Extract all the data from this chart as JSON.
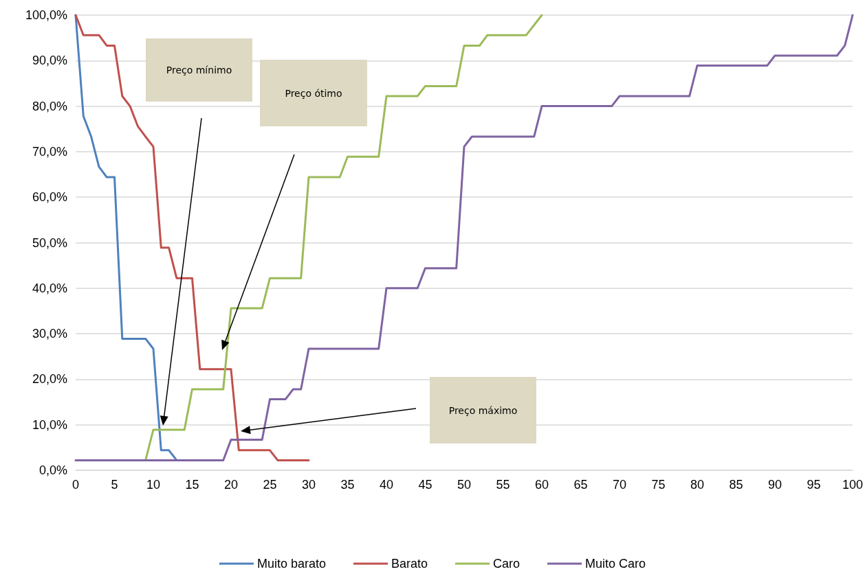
{
  "chart_data": {
    "type": "line",
    "xlim": [
      0,
      100
    ],
    "xticks": [
      0,
      5,
      10,
      15,
      20,
      25,
      30,
      35,
      40,
      45,
      50,
      55,
      60,
      65,
      70,
      75,
      80,
      85,
      90,
      95,
      100
    ],
    "ylim": [
      0,
      100
    ],
    "yticks": [
      {
        "value": 0,
        "label": "0,0%"
      },
      {
        "value": 10,
        "label": "10,0%"
      },
      {
        "value": 20,
        "label": "20,0%"
      },
      {
        "value": 30,
        "label": "30,0%"
      },
      {
        "value": 40,
        "label": "40,0%"
      },
      {
        "value": 50,
        "label": "50,0%"
      },
      {
        "value": 60,
        "label": "60,0%"
      },
      {
        "value": 70,
        "label": "70,0%"
      },
      {
        "value": 80,
        "label": "80,0%"
      },
      {
        "value": 90,
        "label": "90,0%"
      },
      {
        "value": 100,
        "label": "100,0%"
      }
    ],
    "grid": "y",
    "legend": "bottom",
    "marker": "none",
    "line_style": "solid",
    "series": [
      {
        "name": "Muito barato",
        "color": "#4f81bd",
        "x": [
          0,
          1,
          2,
          3,
          4,
          5,
          6,
          9,
          10,
          11,
          12,
          13
        ],
        "values": [
          100,
          77.8,
          73.3,
          66.7,
          64.4,
          64.4,
          28.9,
          28.9,
          26.7,
          4.4,
          4.4,
          2.2
        ]
      },
      {
        "name": "Barato",
        "color": "#c0504d",
        "x": [
          0,
          1,
          3,
          4,
          5,
          6,
          7,
          8,
          9,
          10,
          11,
          12,
          13,
          15,
          16,
          20,
          21,
          25,
          26,
          30
        ],
        "values": [
          100,
          95.6,
          95.6,
          93.3,
          93.3,
          82.2,
          80,
          75.6,
          73.3,
          71.1,
          48.9,
          48.9,
          42.2,
          42.2,
          22.2,
          22.2,
          4.4,
          4.4,
          2.2,
          2.2
        ]
      },
      {
        "name": "Caro",
        "color": "#9bbb59",
        "x": [
          9,
          10,
          14,
          15,
          19,
          20,
          24,
          25,
          29,
          30,
          34,
          35,
          39,
          40,
          44,
          45,
          49,
          50,
          52,
          53,
          58,
          60
        ],
        "values": [
          2.2,
          8.9,
          8.9,
          17.8,
          17.8,
          35.6,
          35.6,
          42.2,
          42.2,
          64.4,
          64.4,
          68.9,
          68.9,
          82.2,
          82.2,
          84.4,
          84.4,
          93.3,
          93.3,
          95.6,
          95.6,
          100
        ]
      },
      {
        "name": "Muito Caro",
        "color": "#8064a2",
        "x": [
          0,
          19,
          20,
          24,
          25,
          27,
          28,
          29,
          30,
          39,
          40,
          44,
          45,
          49,
          50,
          51,
          59,
          60,
          69,
          70,
          79,
          80,
          89,
          90,
          98,
          99,
          100
        ],
        "values": [
          2.2,
          2.2,
          6.7,
          6.7,
          15.6,
          15.6,
          17.8,
          17.8,
          26.7,
          26.7,
          40,
          40,
          44.4,
          44.4,
          71.1,
          73.3,
          73.3,
          80,
          80,
          82.2,
          82.2,
          88.9,
          88.9,
          91.1,
          91.1,
          93.3,
          100
        ]
      }
    ],
    "annotations": [
      "Preço mínimo",
      "Preço ótimo",
      "Preço máximo"
    ]
  }
}
